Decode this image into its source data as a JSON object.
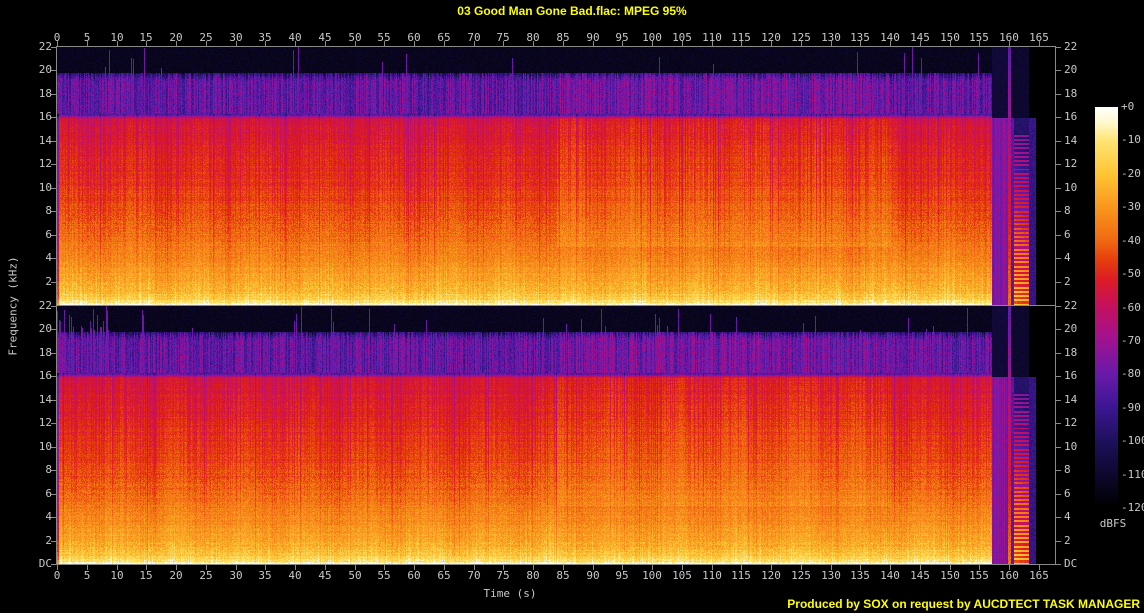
{
  "title": "03 Good Man Gone Bad.flac: MPEG 95%",
  "footer": "Produced by SOX on request by AUCDTECT TASK MANAGER",
  "colors": {
    "background": "#000000",
    "title_text": "#ffff00",
    "footer_text": "#ffff00",
    "axis_text": "#c8c8c8",
    "frame": "#8a8a8a"
  },
  "axes": {
    "time_label": "Time (s)",
    "freq_label": "Frequency (kHz)",
    "db_label": "dBFS",
    "dc_label": "DC",
    "db_ticks": [
      "+0",
      "-10",
      "-20",
      "-30",
      "-40",
      "-50",
      "-60",
      "-70",
      "-80",
      "-90",
      "-100",
      "-110",
      "-120"
    ]
  },
  "chart_data": {
    "type": "heatmap",
    "subtype": "stereo-spectrogram",
    "title": "03 Good Man Gone Bad.flac: MPEG 95%",
    "xlabel": "Time (s)",
    "ylabel": "Frequency (kHz)",
    "zlabel": "dBFS",
    "channels": 2,
    "x_range_s": [
      0,
      167.7
    ],
    "x_ticks": [
      0,
      5,
      10,
      15,
      20,
      25,
      30,
      35,
      40,
      45,
      50,
      55,
      60,
      65,
      70,
      75,
      80,
      85,
      90,
      95,
      100,
      105,
      110,
      115,
      120,
      125,
      130,
      135,
      140,
      145,
      150,
      155,
      160,
      165
    ],
    "y_range_khz": [
      0,
      22
    ],
    "y_ticks_khz": [
      22,
      20,
      18,
      16,
      14,
      12,
      10,
      8,
      6,
      4,
      2
    ],
    "z_range_db": [
      0,
      -120
    ],
    "z_tick_step_db": 10,
    "features": {
      "lowpass_cutoff_khz": 16.1,
      "noise_shelf_khz": [
        16.35,
        19.4
      ],
      "noise_shelf_level_db": -90,
      "content_end_s": 157.1,
      "quiet_tail_s": [
        157.1,
        159.7
      ],
      "outro_transient_s": [
        159.7,
        160.2
      ],
      "outro_tone_s": [
        160.7,
        163.2
      ],
      "silence_from_s": 164.4,
      "loud_section_s": [
        84,
        140
      ],
      "intro_spike_burst_s": [
        0,
        10
      ]
    },
    "palette": [
      [
        0,
        [
          255,
          255,
          255
        ]
      ],
      [
        -5,
        [
          255,
          247,
          200
        ]
      ],
      [
        -10,
        [
          255,
          228,
          115
        ]
      ],
      [
        -20,
        [
          255,
          196,
          52
        ]
      ],
      [
        -30,
        [
          250,
          150,
          30
        ]
      ],
      [
        -40,
        [
          240,
          104,
          18
        ]
      ],
      [
        -46,
        [
          230,
          60,
          14
        ]
      ],
      [
        -52,
        [
          220,
          26,
          40
        ]
      ],
      [
        -60,
        [
          196,
          16,
          96
        ]
      ],
      [
        -70,
        [
          158,
          18,
          146
        ]
      ],
      [
        -80,
        [
          104,
          26,
          170
        ]
      ],
      [
        -90,
        [
          60,
          22,
          146
        ]
      ],
      [
        -100,
        [
          30,
          16,
          92
        ]
      ],
      [
        -110,
        [
          13,
          8,
          46
        ]
      ],
      [
        -120,
        [
          0,
          0,
          0
        ]
      ]
    ]
  }
}
